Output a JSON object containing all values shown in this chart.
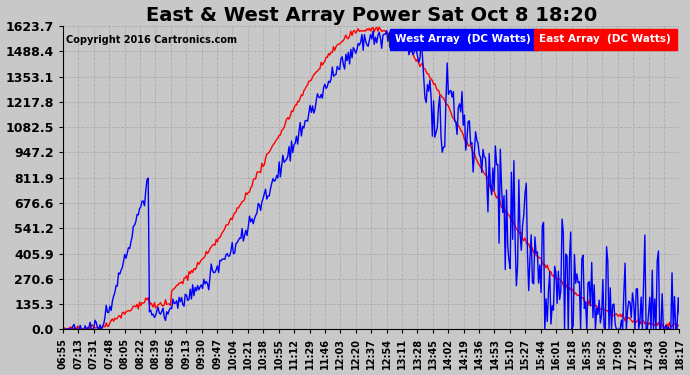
{
  "title": "East & West Array Power Sat Oct 8 18:20",
  "copyright": "Copyright 2016 Cartronics.com",
  "east_color": "#0000ff",
  "west_color": "#ff0000",
  "background_color": "#c8c8c8",
  "plot_background": "#c8c8c8",
  "legend_east": "East Array  (DC Watts)",
  "legend_west": "West Array  (DC Watts)",
  "yticks": [
    0.0,
    135.3,
    270.6,
    405.9,
    541.2,
    676.6,
    811.9,
    947.2,
    1082.5,
    1217.8,
    1353.1,
    1488.4,
    1623.7
  ],
  "ymax": 1623.7,
  "ymin": 0.0,
  "xtick_labels": [
    "06:55",
    "07:13",
    "07:31",
    "07:48",
    "08:05",
    "08:22",
    "08:39",
    "08:56",
    "09:13",
    "09:30",
    "09:47",
    "10:04",
    "10:21",
    "10:38",
    "10:55",
    "11:12",
    "11:29",
    "11:46",
    "12:03",
    "12:20",
    "12:37",
    "12:54",
    "13:11",
    "13:28",
    "13:45",
    "14:02",
    "14:19",
    "14:36",
    "14:53",
    "15:10",
    "15:27",
    "15:44",
    "16:01",
    "16:18",
    "16:35",
    "16:52",
    "17:09",
    "17:26",
    "17:43",
    "18:00",
    "18:17"
  ],
  "grid_color": "#aaaaaa",
  "title_fontsize": 14,
  "axis_fontsize": 7,
  "ytick_fontsize": 9
}
